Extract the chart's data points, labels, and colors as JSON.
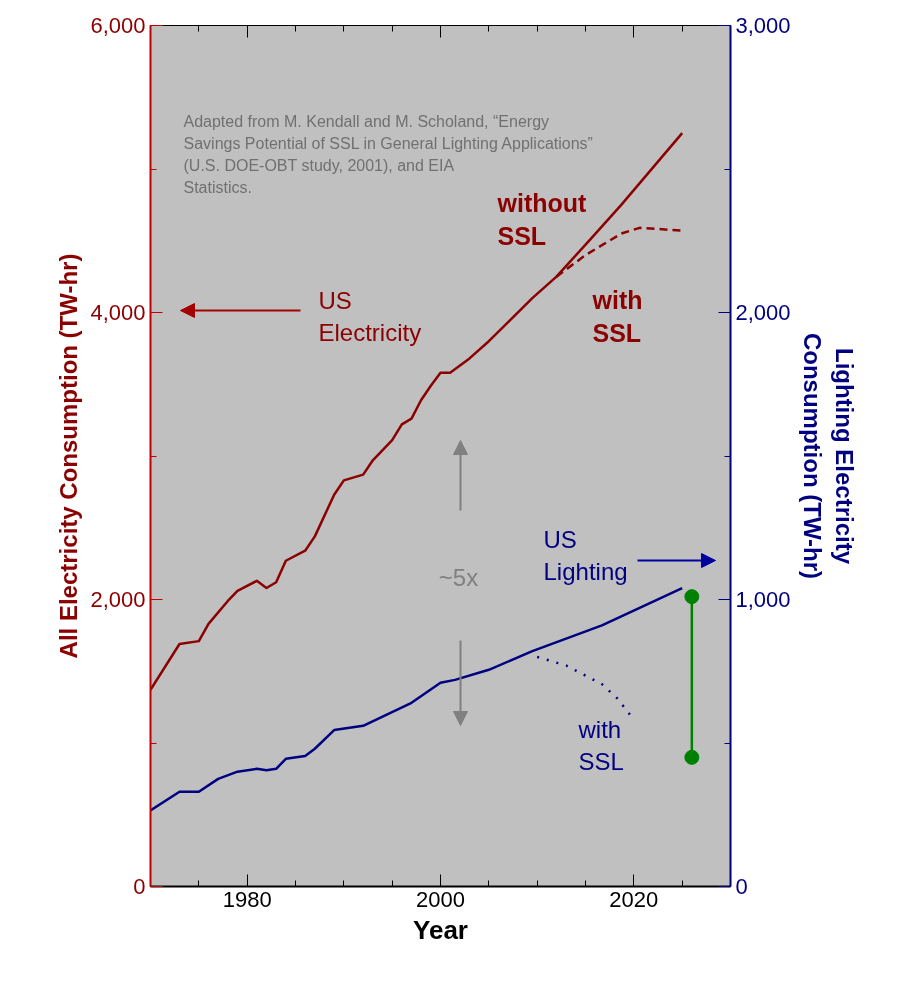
{
  "chart_data": {
    "type": "line",
    "xlabel": "Year",
    "ylabel": "All Electricity Consumption (TW-hr)",
    "y2label": "Lighting Electricity\nConsumption (TW-hr)",
    "xlim": [
      1970,
      2030
    ],
    "xticks": [
      1980,
      2000,
      2020
    ],
    "ylim": [
      0,
      6000
    ],
    "yticks": [
      0,
      {
        "value": 2000,
        "label": "2,000"
      },
      {
        "value": 4000,
        "label": "4,000"
      },
      {
        "value": 6000,
        "label": "6,000"
      }
    ],
    "y2lim": [
      0,
      3000
    ],
    "y2ticks": [
      0,
      {
        "value": 1000,
        "label": "1,000"
      },
      {
        "value": 2000,
        "label": "2,000"
      },
      {
        "value": 3000,
        "label": "3,000"
      }
    ],
    "grid": false,
    "marker": "none",
    "line_style": "solid",
    "series": [
      {
        "color": "#8b0000",
        "x": [
          1970,
          1973,
          1975,
          1976,
          1978,
          1979,
          1981,
          1982,
          1983,
          1984,
          1986,
          1987,
          1989,
          1990,
          1992,
          1993,
          1995,
          1996,
          1997,
          1998,
          1999,
          2000,
          2001,
          2003,
          2005,
          2006.5,
          2009.5,
          2012,
          2015.5,
          2018.7,
          2025
        ],
        "values": [
          1370,
          1690,
          1710,
          1830,
          1990,
          2060,
          2130,
          2080,
          2120,
          2270,
          2340,
          2440,
          2730,
          2830,
          2870,
          2970,
          3110,
          3220,
          3260,
          3390,
          3490,
          3580,
          3580,
          3680,
          3800,
          3900,
          4100,
          4250,
          4510,
          4750,
          5250
        ]
      },
      {
        "color": "#8b0000",
        "line_style": "dashed",
        "x": [
          2012,
          2015,
          2018.7,
          2020.6,
          2025.2
        ],
        "values": [
          4250,
          4400,
          4550,
          4590,
          4570
        ]
      },
      {
        "color": "#000080",
        "axis": "y2",
        "x": [
          1970,
          1973,
          1975,
          1977,
          1979,
          1981,
          1982,
          1983,
          1984,
          1986,
          1987,
          1989,
          1992,
          1997,
          2000,
          2001.5,
          2005,
          2009.5,
          2016.7,
          2025
        ],
        "values": [
          265,
          330,
          330,
          375,
          400,
          410,
          405,
          410,
          445,
          455,
          480,
          545,
          560,
          640,
          710,
          720,
          755,
          820,
          910,
          1040
        ]
      },
      {
        "color": "#000080",
        "axis": "y2",
        "line_style": "dotted",
        "x": [
          2010,
          2013,
          2016.7,
          2018.3,
          2019.8
        ],
        "values": [
          800,
          770,
          705,
          655,
          590
        ]
      },
      {
        "color": "#008000",
        "axis": "y2",
        "marker": "circle",
        "x": [
          2026,
          2026
        ],
        "values": [
          1010,
          450
        ]
      }
    ],
    "annotations": [
      "US\nElectricity",
      "without\nSSL",
      "with\nSSL",
      "US\nLighting",
      "with\nSSL",
      "~5x",
      "Adapted from M. Kendall and M. Scholand, “Energy\nSavings Potential of SSL in General Lighting Applications”\n(U.S. DOE-OBT study, 2001), and EIA\nStatistics."
    ]
  }
}
